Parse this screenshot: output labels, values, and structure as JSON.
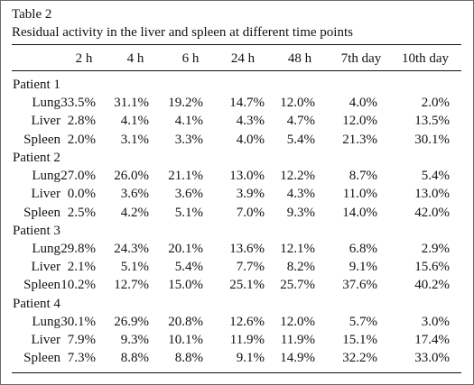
{
  "caption": {
    "label": "Table 2",
    "title": "Residual activity in the liver and spleen at different time points"
  },
  "table": {
    "columns": [
      "2 h",
      "4 h",
      "6 h",
      "24 h",
      "48 h",
      "7th day",
      "10th day"
    ],
    "groups": [
      {
        "patient": "Patient 1",
        "rows": [
          {
            "organ": "Lung",
            "values": [
              "33.5%",
              "31.1%",
              "19.2%",
              "14.7%",
              "12.0%",
              "4.0%",
              "2.0%"
            ]
          },
          {
            "organ": "Liver",
            "values": [
              "2.8%",
              "4.1%",
              "4.1%",
              "4.3%",
              "4.7%",
              "12.0%",
              "13.5%"
            ]
          },
          {
            "organ": "Spleen",
            "values": [
              "2.0%",
              "3.1%",
              "3.3%",
              "4.0%",
              "5.4%",
              "21.3%",
              "30.1%"
            ]
          }
        ]
      },
      {
        "patient": "Patient 2",
        "rows": [
          {
            "organ": "Lung",
            "values": [
              "27.0%",
              "26.0%",
              "21.1%",
              "13.0%",
              "12.2%",
              "8.7%",
              "5.4%"
            ]
          },
          {
            "organ": "Liver",
            "values": [
              "0.0%",
              "3.6%",
              "3.6%",
              "3.9%",
              "4.3%",
              "11.0%",
              "13.0%"
            ]
          },
          {
            "organ": "Spleen",
            "values": [
              "2.5%",
              "4.2%",
              "5.1%",
              "7.0%",
              "9.3%",
              "14.0%",
              "42.0%"
            ]
          }
        ]
      },
      {
        "patient": "Patient 3",
        "rows": [
          {
            "organ": "Lung",
            "values": [
              "29.8%",
              "24.3%",
              "20.1%",
              "13.6%",
              "12.1%",
              "6.8%",
              "2.9%"
            ]
          },
          {
            "organ": "Liver",
            "values": [
              "2.1%",
              "5.1%",
              "5.4%",
              "7.7%",
              "8.2%",
              "9.1%",
              "15.6%"
            ]
          },
          {
            "organ": "Spleen",
            "values": [
              "10.2%",
              "12.7%",
              "15.0%",
              "25.1%",
              "25.7%",
              "37.6%",
              "40.2%"
            ]
          }
        ]
      },
      {
        "patient": "Patient 4",
        "rows": [
          {
            "organ": "Lung",
            "values": [
              "30.1%",
              "26.9%",
              "20.8%",
              "12.6%",
              "12.0%",
              "5.7%",
              "3.0%"
            ]
          },
          {
            "organ": "Liver",
            "values": [
              "7.9%",
              "9.3%",
              "10.1%",
              "11.9%",
              "11.9%",
              "15.1%",
              "17.4%"
            ]
          },
          {
            "organ": "Spleen",
            "values": [
              "7.3%",
              "8.8%",
              "8.8%",
              "9.1%",
              "14.9%",
              "32.2%",
              "33.0%"
            ]
          }
        ]
      }
    ]
  }
}
